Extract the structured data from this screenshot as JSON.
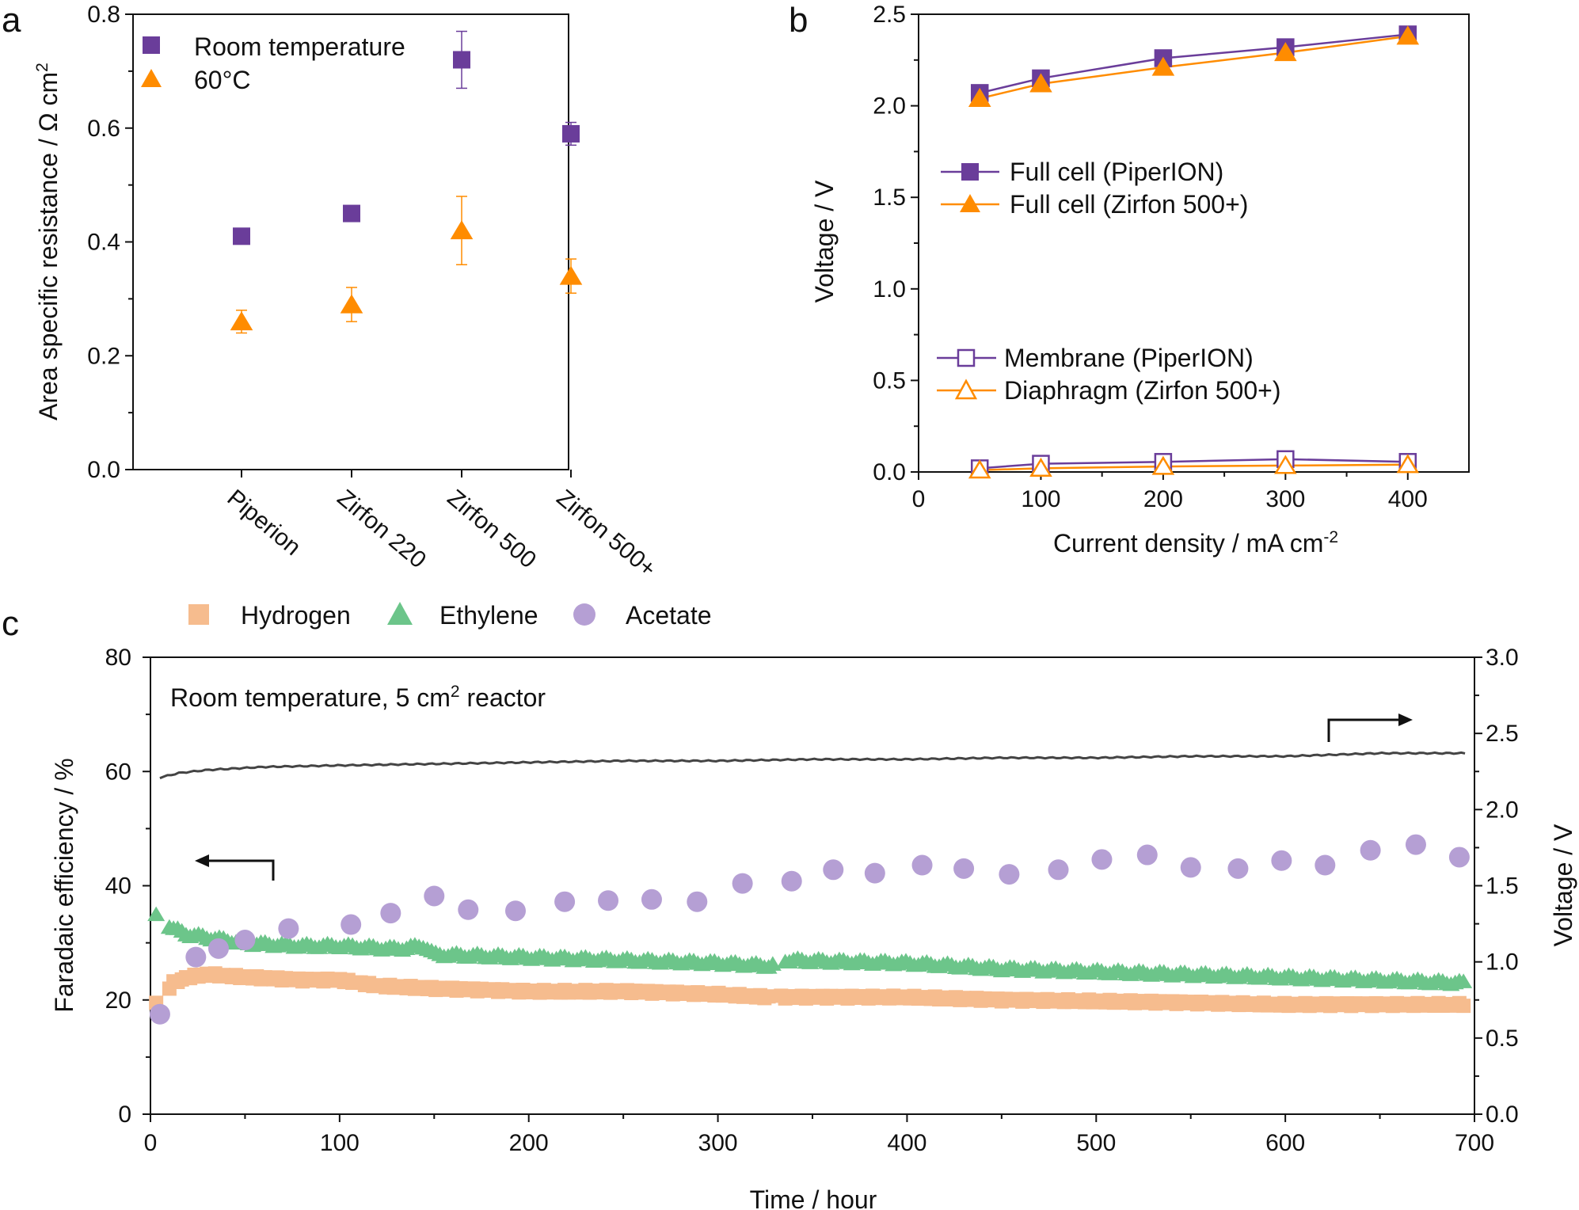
{
  "chart_data": [
    {
      "panel": "a",
      "type": "scatter",
      "ylabel": "Area specific resistance / Ω cm",
      "ylabel_sup": "2",
      "ylim": [
        0.0,
        0.8
      ],
      "yticks": [
        "0.0",
        "0.2",
        "0.4",
        "0.6",
        "0.8"
      ],
      "categories": [
        "Piperion",
        "Zirfon 220",
        "Zirfon 500",
        "Zirfon 500+"
      ],
      "series": [
        {
          "name": "Room temperature",
          "marker": "square",
          "color": "#6a3d9a",
          "values": [
            0.41,
            0.45,
            0.72,
            0.59
          ],
          "errors": [
            0.01,
            0.01,
            0.05,
            0.02
          ]
        },
        {
          "name": "60°C",
          "marker": "triangle",
          "color": "#ff8c00",
          "values": [
            0.26,
            0.29,
            0.42,
            0.34
          ],
          "errors": [
            0.02,
            0.03,
            0.06,
            0.03
          ]
        }
      ]
    },
    {
      "panel": "b",
      "type": "line",
      "xlabel": "Current density / mA cm",
      "xlabel_sup": "-2",
      "ylabel": "Voltage / V",
      "xlim": [
        0,
        450
      ],
      "ylim": [
        0.0,
        2.5
      ],
      "xticks": [
        "0",
        "100",
        "200",
        "300",
        "400"
      ],
      "yticks": [
        "0.0",
        "0.5",
        "1.0",
        "1.5",
        "2.0",
        "2.5"
      ],
      "x": [
        50,
        100,
        200,
        300,
        400
      ],
      "series": [
        {
          "name": "Full cell (PiperION)",
          "marker": "square",
          "filled": true,
          "color": "#6a3d9a",
          "values": [
            2.07,
            2.15,
            2.26,
            2.32,
            2.39
          ]
        },
        {
          "name": "Full cell (Zirfon 500+)",
          "marker": "triangle",
          "filled": true,
          "color": "#ff8c00",
          "values": [
            2.04,
            2.12,
            2.21,
            2.29,
            2.38
          ]
        },
        {
          "name": "Membrane (PiperION)",
          "marker": "square",
          "filled": false,
          "color": "#6a3d9a",
          "values": [
            0.02,
            0.045,
            0.055,
            0.07,
            0.055
          ]
        },
        {
          "name": "Diaphragm (Zirfon 500+)",
          "marker": "triangle",
          "filled": false,
          "color": "#ff8c00",
          "values": [
            0.01,
            0.02,
            0.03,
            0.035,
            0.04
          ]
        }
      ]
    },
    {
      "panel": "c",
      "type": "scatter",
      "annotation": "Room temperature, 5 cm",
      "annotation_sup": "2",
      "annotation_tail": " reactor",
      "xlabel": "Time / hour",
      "ylabel": "Faradaic efficiency / %",
      "y2label": "Voltage / V",
      "xlim": [
        0,
        700
      ],
      "ylim": [
        0,
        80
      ],
      "y2lim": [
        0.0,
        3.0
      ],
      "xticks": [
        "0",
        "100",
        "200",
        "300",
        "400",
        "500",
        "600",
        "700"
      ],
      "yticks": [
        "0",
        "20",
        "40",
        "60",
        "80"
      ],
      "y2ticks": [
        "0.0",
        "0.5",
        "1.0",
        "1.5",
        "2.0",
        "2.5",
        "3.0"
      ],
      "legend": [
        "Hydrogen",
        "Ethylene",
        "Acetate"
      ],
      "hydrogen": {
        "name": "Hydrogen",
        "color": "#f6bc8e",
        "points": [
          [
            3,
            19.5
          ],
          [
            12,
            23
          ],
          [
            20,
            24
          ],
          [
            30,
            24.5
          ],
          [
            50,
            24
          ],
          [
            80,
            23.5
          ],
          [
            100,
            23.5
          ],
          [
            120,
            22.5
          ],
          [
            150,
            22
          ],
          [
            200,
            21.5
          ],
          [
            250,
            21.5
          ],
          [
            300,
            21
          ],
          [
            327,
            20.5
          ],
          [
            335,
            20.5
          ],
          [
            400,
            20.5
          ],
          [
            450,
            20
          ],
          [
            500,
            19.8
          ],
          [
            550,
            19.5
          ],
          [
            600,
            19.2
          ],
          [
            650,
            19.2
          ],
          [
            695,
            19.2
          ]
        ]
      },
      "ethylene": {
        "name": "Ethylene",
        "color": "#6cc58a",
        "points": [
          [
            3,
            35
          ],
          [
            12,
            32.5
          ],
          [
            20,
            31.5
          ],
          [
            30,
            31
          ],
          [
            50,
            30
          ],
          [
            80,
            29.5
          ],
          [
            100,
            29.5
          ],
          [
            130,
            29
          ],
          [
            145,
            29.5
          ],
          [
            150,
            28
          ],
          [
            200,
            27.5
          ],
          [
            250,
            27
          ],
          [
            300,
            26.5
          ],
          [
            328,
            26
          ],
          [
            335,
            27
          ],
          [
            400,
            26.5
          ],
          [
            450,
            25.5
          ],
          [
            500,
            25
          ],
          [
            550,
            24.5
          ],
          [
            600,
            24
          ],
          [
            650,
            23.5
          ],
          [
            695,
            23
          ]
        ]
      },
      "acetate": {
        "name": "Acetate",
        "color": "#b59fd4",
        "points": [
          [
            5,
            17.5
          ],
          [
            24,
            27.5
          ],
          [
            36,
            29
          ],
          [
            50,
            30.5
          ],
          [
            73,
            32.5
          ],
          [
            106,
            33.2
          ],
          [
            127,
            35.2
          ],
          [
            150,
            38.2
          ],
          [
            168,
            35.8
          ],
          [
            193,
            35.6
          ],
          [
            219,
            37.2
          ],
          [
            242,
            37.4
          ],
          [
            265,
            37.6
          ],
          [
            289,
            37.2
          ],
          [
            313,
            40.4
          ],
          [
            339,
            40.8
          ],
          [
            361,
            42.8
          ],
          [
            383,
            42.2
          ],
          [
            408,
            43.6
          ],
          [
            430,
            43
          ],
          [
            454,
            42
          ],
          [
            480,
            42.8
          ],
          [
            503,
            44.6
          ],
          [
            527,
            45.4
          ],
          [
            550,
            43.2
          ],
          [
            575,
            43
          ],
          [
            598,
            44.4
          ],
          [
            621,
            43.6
          ],
          [
            645,
            46.2
          ],
          [
            669,
            47.2
          ],
          [
            692,
            45
          ]
        ]
      },
      "voltage": {
        "name": "Voltage",
        "color": "#444444",
        "points": [
          [
            5,
            2.21
          ],
          [
            15,
            2.24
          ],
          [
            30,
            2.26
          ],
          [
            60,
            2.28
          ],
          [
            100,
            2.29
          ],
          [
            150,
            2.3
          ],
          [
            200,
            2.31
          ],
          [
            250,
            2.32
          ],
          [
            300,
            2.32
          ],
          [
            350,
            2.33
          ],
          [
            400,
            2.33
          ],
          [
            450,
            2.34
          ],
          [
            500,
            2.34
          ],
          [
            550,
            2.35
          ],
          [
            600,
            2.35
          ],
          [
            650,
            2.37
          ],
          [
            695,
            2.37
          ]
        ]
      }
    }
  ],
  "panels": {
    "a": "a",
    "b": "b",
    "c": "c"
  }
}
